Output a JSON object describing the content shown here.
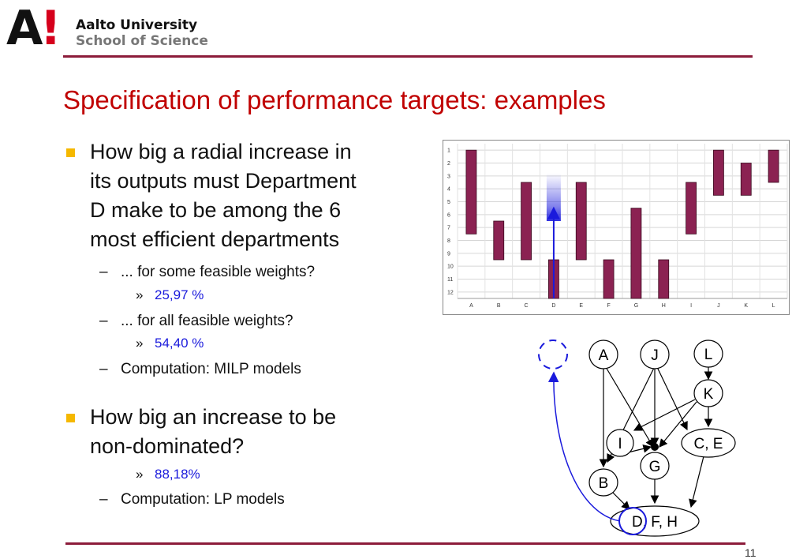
{
  "header": {
    "logo_mark": "A",
    "logo_bang": "!",
    "university": "Aalto University",
    "school": "School of Science"
  },
  "title": "Specification of performance targets: examples",
  "bullets": {
    "b1_lines": [
      "How big a radial increase in",
      "its outputs must Department",
      "D make to be among the 6",
      "most efficient departments"
    ],
    "b1_sub1": "... for some feasible weights?",
    "b1_sub1_val": "25,97 %",
    "b1_sub2": "... for all feasible weights?",
    "b1_sub2_val": "54,40 %",
    "b1_sub3": "Computation: MILP models",
    "b2_lines": [
      "How big an increase to be",
      "non-dominated?"
    ],
    "b2_val": "88,18%",
    "b2_sub": "Computation: LP models",
    "dash": "–",
    "raquo": "»"
  },
  "chart_data": {
    "type": "bar",
    "categories": [
      "A",
      "B",
      "C",
      "D",
      "E",
      "F",
      "G",
      "H",
      "I",
      "J",
      "K",
      "L"
    ],
    "y_ticks": [
      1,
      2,
      3,
      4,
      5,
      6,
      7,
      8,
      9,
      10,
      11,
      12
    ],
    "ylim": [
      0.5,
      12.5
    ],
    "y_inverted": true,
    "grid": true,
    "series": [
      {
        "ranges": [
          [
            1,
            7.5
          ],
          [
            6.5,
            9.5
          ],
          [
            3.5,
            9.5
          ],
          [
            9.5,
            12.5
          ],
          [
            3.5,
            9.5
          ],
          [
            9.5,
            12.5
          ],
          [
            5.5,
            12.5
          ],
          [
            9.5,
            12.5
          ],
          [
            3.5,
            7.5
          ],
          [
            1,
            4.5
          ],
          [
            2,
            4.5
          ],
          [
            1,
            3.5
          ]
        ],
        "color": "#8b2252"
      }
    ],
    "target_arrow": {
      "category": "D",
      "from": 12.5,
      "to": 5.5,
      "color": "#1a1adc"
    }
  },
  "graph": {
    "nodes": {
      "A": "A",
      "J": "J",
      "L": "L",
      "K": "K",
      "I": "I",
      "CE": "C, E",
      "G": "G",
      "B": "B",
      "DFH": "D, F, H"
    }
  },
  "page_number": "11"
}
